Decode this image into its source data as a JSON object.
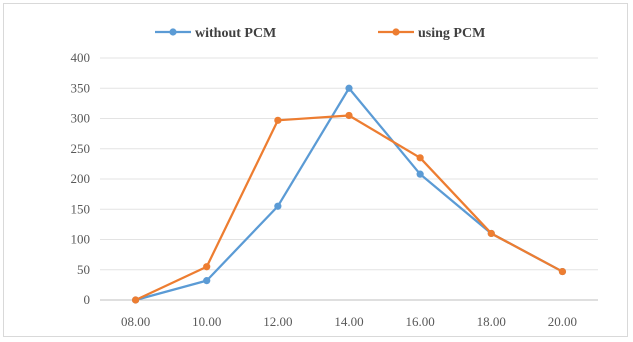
{
  "chart_data": {
    "type": "line",
    "categories": [
      "08.00",
      "10.00",
      "12.00",
      "14.00",
      "16.00",
      "18.00",
      "20.00"
    ],
    "series": [
      {
        "name": "without PCM",
        "color": "#5b9bd5",
        "values": [
          0,
          32,
          155,
          350,
          208,
          110,
          47
        ]
      },
      {
        "name": "using PCM",
        "color": "#ed7d31",
        "values": [
          0,
          55,
          297,
          305,
          235,
          110,
          47
        ]
      }
    ],
    "yticks": [
      "0",
      "50",
      "100",
      "150",
      "200",
      "250",
      "300",
      "350",
      "400"
    ],
    "ylim": [
      0,
      400
    ],
    "grid": true,
    "legend_position": "top"
  }
}
